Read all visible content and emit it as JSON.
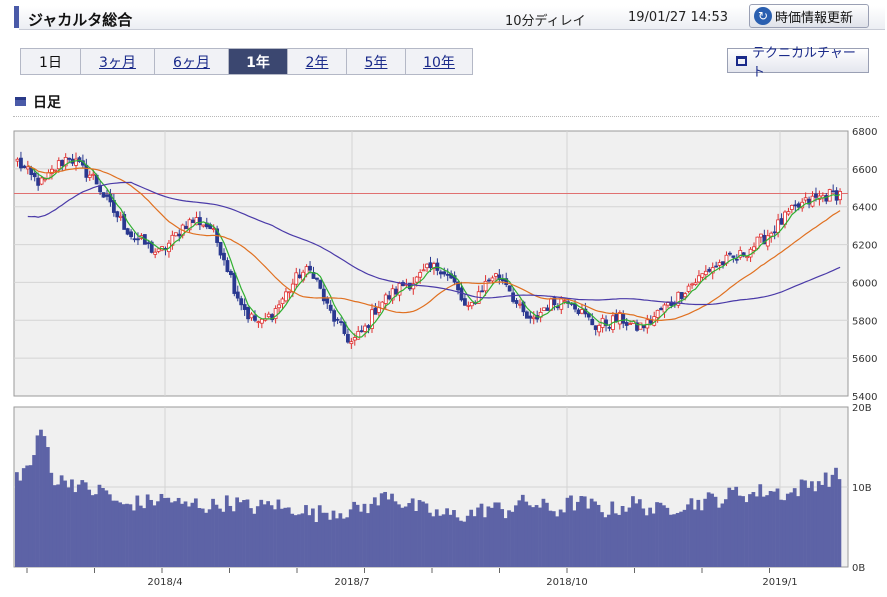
{
  "header": {
    "title": "ジャカルタ総合",
    "delay": "10分ディレイ",
    "timestamp": "19/01/27 14:53",
    "refresh_label": "時価情報更新",
    "refresh_icon": "refresh-icon"
  },
  "tabs": [
    {
      "label": "1日",
      "active": false
    },
    {
      "label": "3ヶ月",
      "active": false
    },
    {
      "label": "6ヶ月",
      "active": false
    },
    {
      "label": "1年",
      "active": true
    },
    {
      "label": "2年",
      "active": false
    },
    {
      "label": "5年",
      "active": false
    },
    {
      "label": "10年",
      "active": false
    }
  ],
  "technical_chart_label": "テクニカルチャート",
  "section_label": "日足",
  "chart_data": {
    "type": "candlestick",
    "x_tick_labels": [
      "2018/4",
      "2018/7",
      "2018/10",
      "2019/1"
    ],
    "price_axis": {
      "ylim": [
        5400,
        6800
      ],
      "ticks": [
        "6800",
        "6600",
        "6400",
        "6200",
        "6000",
        "5800",
        "5600",
        "5400"
      ]
    },
    "volume_axis": {
      "ylim": [
        0,
        20
      ],
      "ticks": [
        "20B",
        "10B",
        "0B"
      ]
    },
    "reference_line": 6470,
    "colors": {
      "up": "#e03030",
      "down": "#2a3990",
      "ma_short": "#30b030",
      "ma_mid": "#e07020",
      "ma_long": "#4a3aa8",
      "ref": "#e07070",
      "volume": "#5d63a6"
    },
    "weekly_close": [
      6640,
      6560,
      6520,
      6610,
      6670,
      6600,
      6550,
      6420,
      6330,
      6240,
      6200,
      6150,
      6220,
      6310,
      6330,
      6290,
      6150,
      5950,
      5820,
      5780,
      5850,
      5950,
      6050,
      6060,
      5880,
      5770,
      5680,
      5750,
      5880,
      5930,
      5990,
      6010,
      6070,
      6080,
      5990,
      5840,
      5960,
      6040,
      6010,
      5860,
      5780,
      5870,
      5900,
      5920,
      5830,
      5770,
      5790,
      5810,
      5760,
      5780,
      5850,
      5900,
      5970,
      6020,
      6080,
      6110,
      6130,
      6180,
      6230,
      6290,
      6360,
      6410,
      6440,
      6460,
      6470
    ],
    "volume": [
      11.5,
      12.5,
      17.5,
      10.5,
      11,
      10,
      9.5,
      9.5,
      7.5,
      8,
      8,
      8.5,
      8.5,
      7.5,
      8,
      7.5,
      8,
      8,
      7.5,
      7.5,
      8,
      7,
      7.5,
      6.5,
      7,
      7,
      7,
      7.5,
      8,
      9.5,
      8,
      7.5,
      7,
      6.5,
      6.5,
      6.5,
      7,
      7.5,
      7,
      8,
      8,
      7.5,
      7,
      8,
      8,
      7.5,
      7,
      7.5,
      8,
      7.5,
      7,
      7.5,
      8,
      8,
      8.5,
      8.5,
      9.5,
      9,
      9.5,
      9.5,
      9,
      10,
      10.5,
      11,
      11.5
    ]
  }
}
